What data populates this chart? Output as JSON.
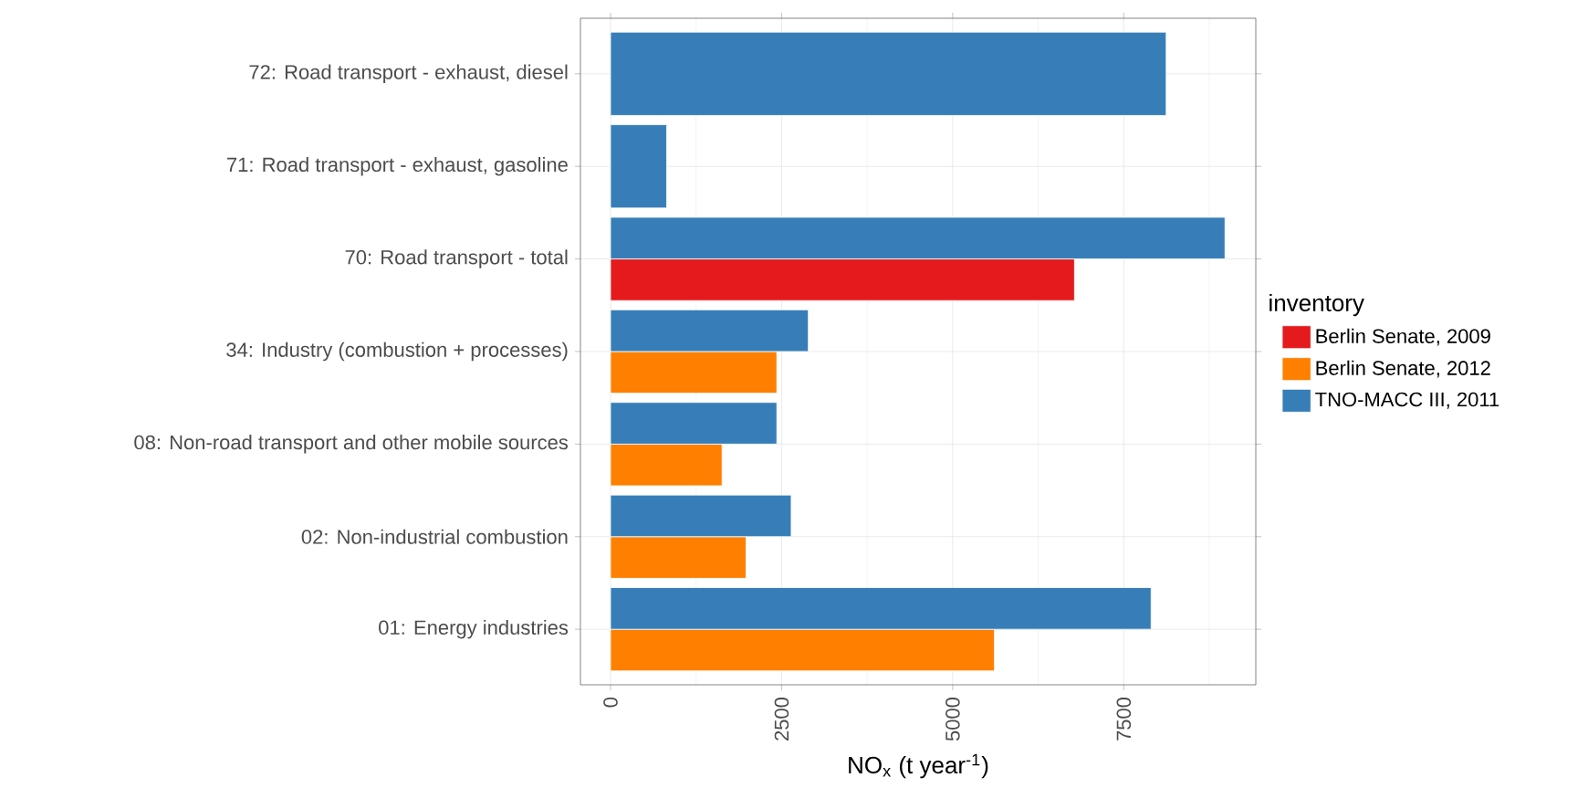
{
  "chart_data": {
    "type": "bar",
    "orientation": "horizontal",
    "xlabel": "NO$_{x}$ (t year$^{-1}$)",
    "legend_title": "inventory",
    "legend": "right",
    "categories": [
      "72: Road transport - exhaust, diesel",
      "71: Road transport - exhaust, gasoline",
      "70: Road transport - total",
      "34: Industry (combustion + processes)",
      "08: Non-road transport and other mobile sources",
      "02: Non-industrial combustion",
      "01: Energy industries"
    ],
    "series": [
      {
        "name": "Berlin Senate, 2009",
        "color": "#e41a1c",
        "values": [
          null,
          null,
          6780,
          null,
          null,
          null,
          null
        ]
      },
      {
        "name": "Berlin Senate, 2012",
        "color": "#ff7f00",
        "values": [
          null,
          null,
          null,
          2430,
          1630,
          1980,
          5610
        ]
      },
      {
        "name": "TNO-MACC III, 2011",
        "color": "#377eb8",
        "values": [
          8120,
          820,
          8980,
          2890,
          2430,
          2640,
          7900
        ]
      }
    ],
    "xlim": [
      -440,
      9430
    ],
    "xticks": [
      0,
      2500,
      5000,
      7500
    ],
    "grid": true
  }
}
